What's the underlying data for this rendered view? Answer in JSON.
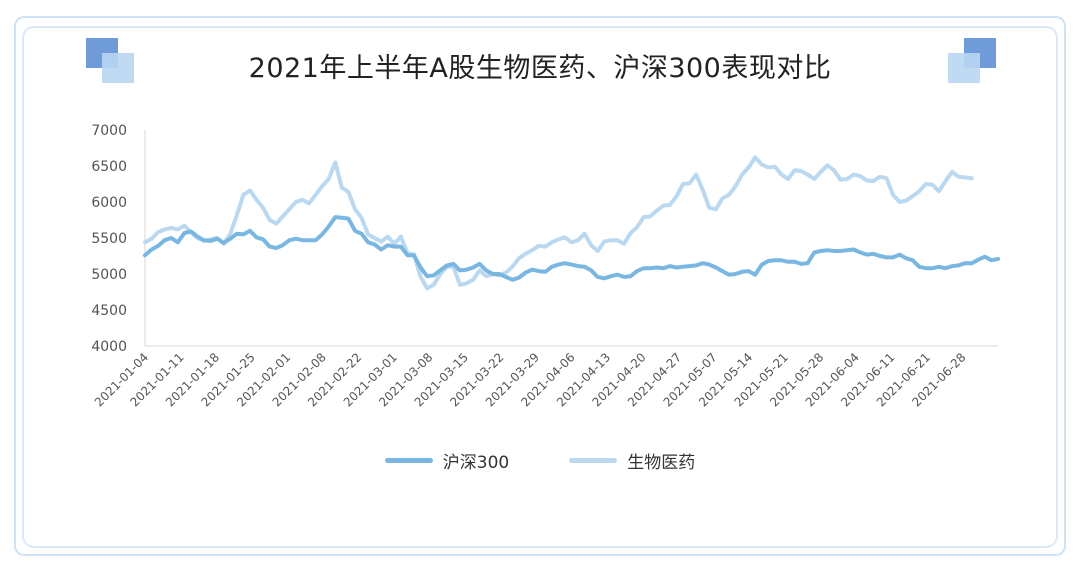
{
  "chart_data": {
    "type": "line",
    "title": "2021年上半年A股生物医药、沪深300表现对比",
    "xlabel": "",
    "ylabel": "",
    "ylim": [
      4000,
      7000
    ],
    "yticks": [
      4000,
      4500,
      5000,
      5500,
      6000,
      6500,
      7000
    ],
    "x_tick_labels": [
      "2021-01-04",
      "2021-01-11",
      "2021-01-18",
      "2021-01-25",
      "2021-02-01",
      "2021-02-08",
      "2021-02-22",
      "2021-03-01",
      "2021-03-08",
      "2021-03-15",
      "2021-03-22",
      "2021-03-29",
      "2021-04-06",
      "2021-04-13",
      "2021-04-20",
      "2021-04-27",
      "2021-05-07",
      "2021-05-14",
      "2021-05-21",
      "2021-05-28",
      "2021-06-04",
      "2021-06-11",
      "2021-06-21",
      "2021-06-28"
    ],
    "grid": false,
    "legend": "bottom",
    "series": [
      {
        "name": "沪深300",
        "color": "#7ab6e2",
        "values": [
          5260,
          5340,
          5390,
          5470,
          5500,
          5440,
          5570,
          5590,
          5520,
          5470,
          5460,
          5490,
          5430,
          5490,
          5560,
          5550,
          5600,
          5510,
          5480,
          5380,
          5360,
          5400,
          5470,
          5490,
          5470,
          5470,
          5470,
          5550,
          5660,
          5790,
          5780,
          5770,
          5600,
          5560,
          5440,
          5410,
          5340,
          5400,
          5380,
          5380,
          5260,
          5260,
          5090,
          4970,
          4980,
          5050,
          5120,
          5140,
          5050,
          5060,
          5090,
          5140,
          5050,
          5000,
          5000,
          4960,
          4920,
          4950,
          5020,
          5060,
          5040,
          5030,
          5100,
          5130,
          5150,
          5130,
          5110,
          5100,
          5050,
          4960,
          4940,
          4970,
          4990,
          4960,
          4970,
          5040,
          5080,
          5080,
          5090,
          5080,
          5110,
          5090,
          5100,
          5110,
          5120,
          5150,
          5130,
          5090,
          5040,
          4990,
          5000,
          5030,
          5040,
          4990,
          5130,
          5180,
          5190,
          5190,
          5170,
          5170,
          5140,
          5150,
          5300,
          5320,
          5330,
          5320,
          5320,
          5330,
          5340,
          5300,
          5270,
          5280,
          5250,
          5230,
          5230,
          5270,
          5220,
          5190,
          5100,
          5080,
          5080,
          5100,
          5080,
          5110,
          5120,
          5150,
          5150,
          5200,
          5240,
          5190,
          5210
        ]
      },
      {
        "name": "生物医药",
        "color": "#bad8f0",
        "values": [
          5440,
          5490,
          5580,
          5620,
          5640,
          5620,
          5670,
          5580,
          5500,
          5460,
          5480,
          5500,
          5420,
          5560,
          5820,
          6100,
          6160,
          6030,
          5920,
          5750,
          5700,
          5800,
          5900,
          6000,
          6030,
          5980,
          6100,
          6220,
          6320,
          6550,
          6200,
          6140,
          5900,
          5780,
          5550,
          5500,
          5450,
          5520,
          5420,
          5520,
          5290,
          5270,
          4960,
          4800,
          4850,
          5000,
          5100,
          5100,
          4850,
          4870,
          4920,
          5050,
          4970,
          5000,
          4980,
          5020,
          5100,
          5220,
          5280,
          5330,
          5390,
          5380,
          5440,
          5480,
          5510,
          5440,
          5470,
          5560,
          5400,
          5320,
          5450,
          5470,
          5470,
          5420,
          5570,
          5650,
          5790,
          5800,
          5880,
          5950,
          5960,
          6080,
          6250,
          6260,
          6380,
          6170,
          5920,
          5900,
          6050,
          6100,
          6220,
          6380,
          6480,
          6620,
          6520,
          6480,
          6490,
          6380,
          6320,
          6440,
          6430,
          6380,
          6320,
          6420,
          6510,
          6440,
          6310,
          6320,
          6380,
          6360,
          6300,
          6290,
          6350,
          6330,
          6100,
          6000,
          6020,
          6080,
          6150,
          6250,
          6240,
          6150,
          6290,
          6420,
          6350,
          6340,
          6330
        ]
      }
    ]
  }
}
